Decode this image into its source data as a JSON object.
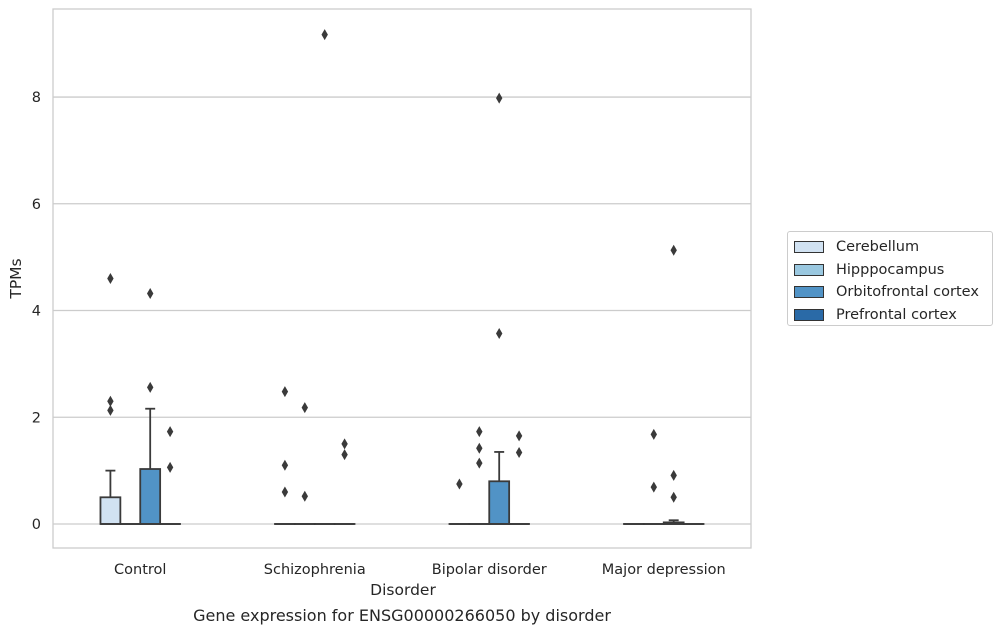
{
  "chart_data": {
    "type": "box",
    "title": "",
    "caption": "Gene expression for ENSG00000266050 by disorder",
    "xlabel": "Disorder",
    "ylabel": "TPMs",
    "categories": [
      "Control",
      "Schizophrenia",
      "Bipolar disorder",
      "Major depression"
    ],
    "ylim": [
      -0.45,
      9.65
    ],
    "yticks": [
      0,
      2,
      4,
      6,
      8
    ],
    "grid": "horizontal",
    "legend_position": "center-right",
    "series": [
      {
        "name": "Cerebellum",
        "color": "#d1e2f2",
        "boxes": [
          {
            "q1": 0,
            "median": 0,
            "q3": 0.5,
            "whisker_low": 0,
            "whisker_high": 1.0,
            "outliers": [
              4.6,
              2.3,
              2.13
            ]
          },
          {
            "q1": 0,
            "median": 0,
            "q3": 0,
            "whisker_low": 0,
            "whisker_high": 0,
            "outliers": [
              2.48,
              1.1,
              0.6
            ]
          },
          {
            "q1": 0,
            "median": 0,
            "q3": 0,
            "whisker_low": 0,
            "whisker_high": 0,
            "outliers": [
              0.75
            ]
          },
          {
            "q1": 0,
            "median": 0,
            "q3": 0,
            "whisker_low": 0,
            "whisker_high": 0,
            "outliers": []
          }
        ]
      },
      {
        "name": "Hipppocampus",
        "color": "#9ac8e0",
        "boxes": [
          {
            "q1": 0,
            "median": 0,
            "q3": 0,
            "whisker_low": 0,
            "whisker_high": 0,
            "outliers": []
          },
          {
            "q1": 0,
            "median": 0,
            "q3": 0,
            "whisker_low": 0,
            "whisker_high": 0,
            "outliers": [
              2.18,
              0.52
            ]
          },
          {
            "q1": 0,
            "median": 0,
            "q3": 0,
            "whisker_low": 0,
            "whisker_high": 0,
            "outliers": [
              1.73,
              1.42,
              1.14
            ]
          },
          {
            "q1": 0,
            "median": 0,
            "q3": 0,
            "whisker_low": 0,
            "whisker_high": 0,
            "outliers": [
              1.68,
              0.69
            ]
          }
        ]
      },
      {
        "name": "Orbitofrontal cortex",
        "color": "#5193c6",
        "boxes": [
          {
            "q1": 0,
            "median": 0,
            "q3": 1.03,
            "whisker_low": 0,
            "whisker_high": 2.16,
            "outliers": [
              4.32,
              2.56
            ]
          },
          {
            "q1": 0,
            "median": 0,
            "q3": 0,
            "whisker_low": 0,
            "whisker_high": 0,
            "outliers": [
              9.17
            ]
          },
          {
            "q1": 0,
            "median": 0,
            "q3": 0.8,
            "whisker_low": 0,
            "whisker_high": 1.35,
            "outliers": [
              7.98,
              3.57
            ]
          },
          {
            "q1": 0,
            "median": 0,
            "q3": 0.03,
            "whisker_low": 0,
            "whisker_high": 0.07,
            "outliers": [
              5.13,
              0.91,
              0.5
            ]
          }
        ]
      },
      {
        "name": "Prefrontal cortex",
        "color": "#2a6aa7",
        "boxes": [
          {
            "q1": 0,
            "median": 0,
            "q3": 0,
            "whisker_low": 0,
            "whisker_high": 0,
            "outliers": [
              1.73,
              1.06
            ]
          },
          {
            "q1": 0,
            "median": 0,
            "q3": 0,
            "whisker_low": 0,
            "whisker_high": 0,
            "outliers": [
              1.5,
              1.3
            ]
          },
          {
            "q1": 0,
            "median": 0,
            "q3": 0,
            "whisker_low": 0,
            "whisker_high": 0,
            "outliers": [
              1.65,
              1.34
            ]
          },
          {
            "q1": 0,
            "median": 0,
            "q3": 0,
            "whisker_low": 0,
            "whisker_high": 0,
            "outliers": []
          }
        ]
      }
    ]
  }
}
